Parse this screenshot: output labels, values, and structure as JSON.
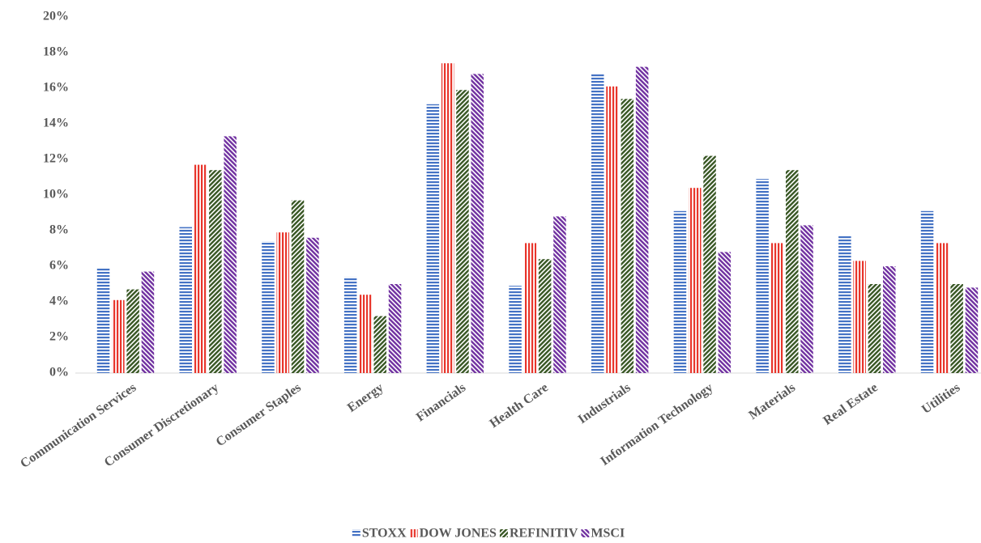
{
  "chart_data": {
    "type": "bar",
    "categories": [
      "Communication Services",
      "Consumer Discretionary",
      "Consumer Staples",
      "Energy",
      "Financials",
      "Health Care",
      "Industrials",
      "Information Technology",
      "Materials",
      "Real Estate",
      "Utilities"
    ],
    "series": [
      {
        "name": "STOXX",
        "color": "#4472c4",
        "values": [
          5.9,
          8.2,
          7.4,
          5.4,
          15.1,
          4.9,
          16.8,
          9.1,
          10.9,
          7.7,
          9.1
        ]
      },
      {
        "name": "DOW JONES",
        "color": "#e8352b",
        "values": [
          4.1,
          11.7,
          7.9,
          4.4,
          17.4,
          7.3,
          16.1,
          10.4,
          7.3,
          6.3,
          7.3
        ]
      },
      {
        "name": "REFINITIV",
        "color": "#375623",
        "values": [
          4.7,
          11.4,
          9.7,
          3.2,
          15.9,
          6.4,
          15.4,
          12.2,
          11.4,
          5.0,
          5.0
        ]
      },
      {
        "name": "MSCI",
        "color": "#7030a0",
        "values": [
          5.7,
          13.3,
          7.6,
          5.0,
          16.8,
          8.8,
          17.2,
          6.8,
          8.3,
          6.0,
          4.8
        ]
      }
    ],
    "ylim": [
      0,
      20
    ],
    "yticks": [
      {
        "value": 0,
        "label": "0%"
      },
      {
        "value": 2,
        "label": "2%"
      },
      {
        "value": 4,
        "label": "4%"
      },
      {
        "value": 6,
        "label": "6%"
      },
      {
        "value": 8,
        "label": "8%"
      },
      {
        "value": 10,
        "label": "10%"
      },
      {
        "value": 12,
        "label": "12%"
      },
      {
        "value": 14,
        "label": "14%"
      },
      {
        "value": 16,
        "label": "16%"
      },
      {
        "value": 18,
        "label": "18%"
      },
      {
        "value": 20,
        "label": "20%"
      }
    ],
    "grid": false,
    "legend": "bottom"
  }
}
